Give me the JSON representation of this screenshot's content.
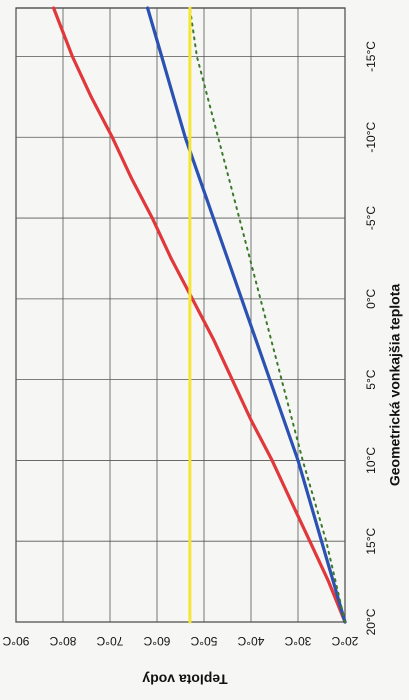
{
  "chart_data": {
    "type": "line",
    "title": "",
    "xlabel": "Geometrická vonkajšia teplota",
    "ylabel": "Teplota vody",
    "x_ticks": [
      20,
      15,
      10,
      5,
      0,
      -5,
      -10,
      -15
    ],
    "x_tick_labels": [
      "20°C",
      "15°C",
      "10°C",
      "5°C",
      "0°C",
      "-5°C",
      "-10°C",
      "-15°C"
    ],
    "y_ticks": [
      20,
      30,
      40,
      50,
      60,
      70,
      80,
      90
    ],
    "y_tick_labels": [
      "20°C",
      "30°C",
      "40°C",
      "50°C",
      "60°C",
      "70°C",
      "80°C",
      "90°C"
    ],
    "xlim": [
      20,
      -18
    ],
    "ylim": [
      20,
      90
    ],
    "grid": true,
    "orientation": "rotated 90° clockwise (y axis along bottom, x axis along left side)",
    "series": [
      {
        "color": "#e0383b",
        "style": "solid",
        "points": [
          [
            20,
            20
          ],
          [
            17.5,
            23.5
          ],
          [
            15,
            27.5
          ],
          [
            12.5,
            31.5
          ],
          [
            10,
            35.5
          ],
          [
            7.5,
            40
          ],
          [
            5,
            44
          ],
          [
            2.5,
            48
          ],
          [
            0,
            52.5
          ],
          [
            -2.5,
            57
          ],
          [
            -5,
            61
          ],
          [
            -7.5,
            65.5
          ],
          [
            -10,
            69.5
          ],
          [
            -12.5,
            74
          ],
          [
            -15,
            78
          ],
          [
            -18,
            82
          ]
        ]
      },
      {
        "color": "#2b52b3",
        "style": "solid",
        "points": [
          [
            20,
            20
          ],
          [
            17.5,
            22.5
          ],
          [
            15,
            25
          ],
          [
            12.5,
            27.5
          ],
          [
            10,
            30
          ],
          [
            7.5,
            33
          ],
          [
            5,
            36
          ],
          [
            2.5,
            39
          ],
          [
            0,
            42
          ],
          [
            -2.5,
            45
          ],
          [
            -5,
            48
          ],
          [
            -7.5,
            51
          ],
          [
            -10,
            54
          ],
          [
            -12.5,
            56.5
          ],
          [
            -15,
            59
          ],
          [
            -18,
            62
          ]
        ]
      },
      {
        "color": "#3a7a2a",
        "style": "dotted",
        "points": [
          [
            20,
            20
          ],
          [
            15,
            24
          ],
          [
            10,
            29
          ],
          [
            5,
            33.5
          ],
          [
            0,
            38
          ],
          [
            -5,
            42.5
          ],
          [
            -10,
            47
          ],
          [
            -15,
            51.5
          ],
          [
            -18,
            53
          ]
        ]
      },
      {
        "color": "#f5e632",
        "style": "solid",
        "width": 3,
        "points": [
          [
            20,
            53
          ],
          [
            -18,
            53
          ]
        ]
      }
    ]
  }
}
